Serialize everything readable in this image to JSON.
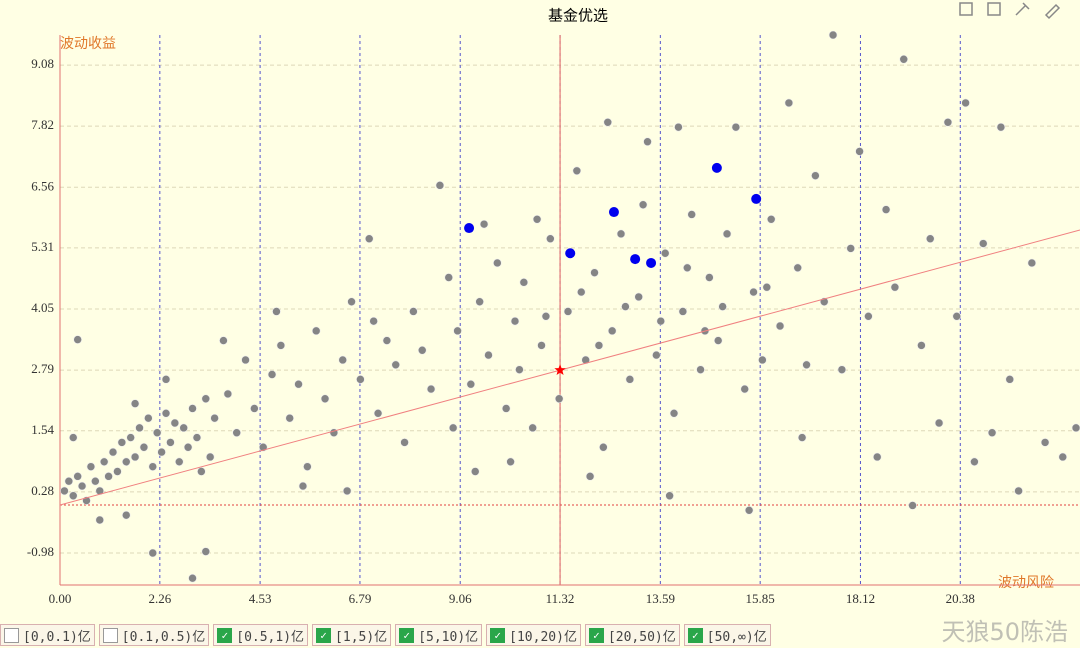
{
  "chart_data": {
    "type": "scatter",
    "title": "基金优选",
    "y_label": "波动收益",
    "x_label": "波动风险",
    "xlim": [
      0,
      23.09
    ],
    "ylim": [
      -1.64,
      9.7
    ],
    "xticks": [
      {
        "value": 0,
        "label": "0.00"
      },
      2.26,
      4.53,
      6.79,
      9.06,
      11.32,
      13.59,
      15.85,
      18.12,
      20.38
    ],
    "yticks": [
      -0.98,
      0.28,
      1.54,
      2.79,
      4.05,
      5.31,
      6.56,
      7.82,
      9.08
    ],
    "grid": true,
    "reference_x": 11.32,
    "reference_y": 0.01,
    "marker": {
      "x": 11.32,
      "y": 2.79,
      "color": "#ff0000"
    },
    "trend": {
      "color": "#f08080",
      "points": [
        [
          0,
          0.01
        ],
        [
          23.09,
          5.68
        ]
      ]
    },
    "series": [
      {
        "color": "#858585",
        "points": [
          [
            0.1,
            0.3
          ],
          [
            0.2,
            0.5
          ],
          [
            0.3,
            0.2
          ],
          [
            0.4,
            0.6
          ],
          [
            0.5,
            0.4
          ],
          [
            0.6,
            0.1
          ],
          [
            0.7,
            0.8
          ],
          [
            0.8,
            0.5
          ],
          [
            0.9,
            0.3
          ],
          [
            1.0,
            0.9
          ],
          [
            1.1,
            0.6
          ],
          [
            1.2,
            1.1
          ],
          [
            1.3,
            0.7
          ],
          [
            1.4,
            1.3
          ],
          [
            1.5,
            0.9
          ],
          [
            1.6,
            1.4
          ],
          [
            1.7,
            1.0
          ],
          [
            1.8,
            1.6
          ],
          [
            1.9,
            1.2
          ],
          [
            2.0,
            1.8
          ],
          [
            2.1,
            0.8
          ],
          [
            2.2,
            1.5
          ],
          [
            2.3,
            1.1
          ],
          [
            2.4,
            1.9
          ],
          [
            2.5,
            1.3
          ],
          [
            2.6,
            1.7
          ],
          [
            2.7,
            0.9
          ],
          [
            2.8,
            1.6
          ],
          [
            2.9,
            1.2
          ],
          [
            3.0,
            2.0
          ],
          [
            3.1,
            1.4
          ],
          [
            3.2,
            0.7
          ],
          [
            3.3,
            2.2
          ],
          [
            3.4,
            1.0
          ],
          [
            0.4,
            3.42
          ],
          [
            2.1,
            -0.98
          ],
          [
            3.0,
            -1.5
          ],
          [
            3.3,
            -0.95
          ],
          [
            1.5,
            -0.2
          ],
          [
            0.9,
            -0.3
          ],
          [
            2.4,
            2.6
          ],
          [
            1.7,
            2.1
          ],
          [
            0.3,
            1.4
          ],
          [
            3.5,
            1.8
          ],
          [
            3.8,
            2.3
          ],
          [
            4.0,
            1.5
          ],
          [
            4.2,
            3.0
          ],
          [
            4.4,
            2.0
          ],
          [
            4.6,
            1.2
          ],
          [
            4.8,
            2.7
          ],
          [
            5.0,
            3.3
          ],
          [
            5.2,
            1.8
          ],
          [
            5.4,
            2.5
          ],
          [
            5.6,
            0.8
          ],
          [
            5.8,
            3.6
          ],
          [
            6.0,
            2.2
          ],
          [
            6.2,
            1.5
          ],
          [
            6.4,
            3.0
          ],
          [
            6.6,
            4.2
          ],
          [
            6.8,
            2.6
          ],
          [
            7.0,
            5.5
          ],
          [
            7.2,
            1.9
          ],
          [
            7.4,
            3.4
          ],
          [
            7.6,
            2.9
          ],
          [
            7.8,
            1.3
          ],
          [
            8.0,
            4.0
          ],
          [
            8.2,
            3.2
          ],
          [
            8.4,
            2.4
          ],
          [
            8.6,
            6.6
          ],
          [
            8.8,
            4.7
          ],
          [
            9.0,
            3.6
          ],
          [
            8.9,
            1.6
          ],
          [
            7.1,
            3.8
          ],
          [
            5.5,
            0.4
          ],
          [
            4.9,
            4.0
          ],
          [
            3.7,
            3.4
          ],
          [
            6.5,
            0.3
          ],
          [
            9.3,
            2.5
          ],
          [
            9.5,
            4.2
          ],
          [
            9.7,
            3.1
          ],
          [
            9.9,
            5.0
          ],
          [
            10.1,
            2.0
          ],
          [
            10.3,
            3.8
          ],
          [
            10.5,
            4.6
          ],
          [
            10.7,
            1.6
          ],
          [
            10.9,
            3.3
          ],
          [
            11.1,
            5.5
          ],
          [
            11.3,
            2.2
          ],
          [
            11.5,
            4.0
          ],
          [
            11.7,
            6.9
          ],
          [
            11.9,
            3.0
          ],
          [
            12.1,
            4.8
          ],
          [
            12.3,
            1.2
          ],
          [
            12.5,
            3.6
          ],
          [
            12.7,
            5.6
          ],
          [
            12.9,
            2.6
          ],
          [
            13.1,
            4.3
          ],
          [
            13.3,
            7.5
          ],
          [
            13.5,
            3.1
          ],
          [
            13.7,
            5.2
          ],
          [
            13.9,
            1.9
          ],
          [
            14.1,
            4.0
          ],
          [
            14.3,
            6.0
          ],
          [
            14.5,
            2.8
          ],
          [
            14.7,
            4.7
          ],
          [
            14.9,
            3.4
          ],
          [
            15.1,
            5.6
          ],
          [
            15.3,
            7.8
          ],
          [
            15.5,
            2.4
          ],
          [
            15.7,
            4.4
          ],
          [
            15.9,
            3.0
          ],
          [
            16.1,
            5.9
          ],
          [
            16.3,
            3.7
          ],
          [
            16.5,
            8.3
          ],
          [
            16.7,
            4.9
          ],
          [
            16.9,
            2.9
          ],
          [
            17.1,
            6.8
          ],
          [
            10.2,
            0.9
          ],
          [
            12.0,
            0.6
          ],
          [
            13.8,
            0.2
          ],
          [
            15.6,
            -0.1
          ],
          [
            16.8,
            1.4
          ],
          [
            14.0,
            7.8
          ],
          [
            12.4,
            7.9
          ],
          [
            9.6,
            5.8
          ],
          [
            10.8,
            5.9
          ],
          [
            13.2,
            6.2
          ],
          [
            11.0,
            3.9
          ],
          [
            12.2,
            3.3
          ],
          [
            14.2,
            4.9
          ],
          [
            15.0,
            4.1
          ],
          [
            16.0,
            4.5
          ],
          [
            13.6,
            3.8
          ],
          [
            11.8,
            4.4
          ],
          [
            10.4,
            2.8
          ],
          [
            12.8,
            4.1
          ],
          [
            14.6,
            3.6
          ],
          [
            9.4,
            0.7
          ],
          [
            17.3,
            4.2
          ],
          [
            17.5,
            9.7
          ],
          [
            17.7,
            2.8
          ],
          [
            17.9,
            5.3
          ],
          [
            18.1,
            7.3
          ],
          [
            18.3,
            3.9
          ],
          [
            18.5,
            1.0
          ],
          [
            18.7,
            6.1
          ],
          [
            18.9,
            4.5
          ],
          [
            19.1,
            9.2
          ],
          [
            19.3,
            0.0
          ],
          [
            19.5,
            3.3
          ],
          [
            19.7,
            5.5
          ],
          [
            19.9,
            1.7
          ],
          [
            20.1,
            7.9
          ],
          [
            20.3,
            3.9
          ],
          [
            20.5,
            8.3
          ],
          [
            20.7,
            0.9
          ],
          [
            20.9,
            5.4
          ],
          [
            21.1,
            1.5
          ],
          [
            21.3,
            7.8
          ],
          [
            21.5,
            2.6
          ],
          [
            21.7,
            0.3
          ],
          [
            22.0,
            5.0
          ],
          [
            22.3,
            1.3
          ],
          [
            22.7,
            1.0
          ],
          [
            23.0,
            1.6
          ]
        ]
      },
      {
        "color": "#0000ee",
        "points": [
          [
            9.26,
            5.72
          ],
          [
            11.55,
            5.2
          ],
          [
            12.54,
            6.05
          ],
          [
            13.02,
            5.08
          ],
          [
            13.38,
            5.0
          ],
          [
            14.87,
            6.96
          ],
          [
            15.76,
            6.32
          ]
        ]
      }
    ]
  },
  "filters": [
    {
      "label": "[0,0.1)亿",
      "checked": false
    },
    {
      "label": "[0.1,0.5)亿",
      "checked": false
    },
    {
      "label": "[0.5,1)亿",
      "checked": true
    },
    {
      "label": "[1,5)亿",
      "checked": true
    },
    {
      "label": "[5,10)亿",
      "checked": true
    },
    {
      "label": "[10,20)亿",
      "checked": true
    },
    {
      "label": "[20,50)亿",
      "checked": true
    },
    {
      "label": "[50,∞)亿",
      "checked": true
    }
  ],
  "watermark": "天狼50陈浩"
}
